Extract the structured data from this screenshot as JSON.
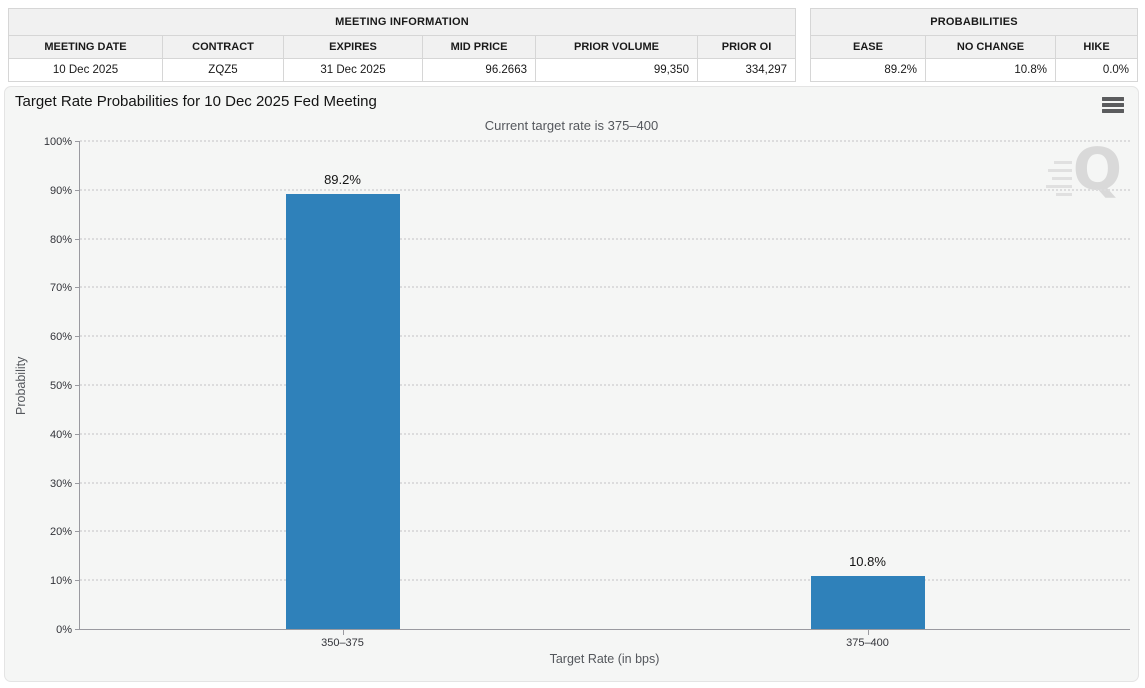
{
  "meeting_table": {
    "title": "MEETING INFORMATION",
    "columns": [
      "MEETING DATE",
      "CONTRACT",
      "EXPIRES",
      "MID PRICE",
      "PRIOR VOLUME",
      "PRIOR OI"
    ],
    "values": [
      "10 Dec 2025",
      "ZQZ5",
      "31 Dec 2025",
      "96.2663",
      "99,350",
      "334,297"
    ]
  },
  "probabilities_table": {
    "title": "PROBABILITIES",
    "columns": [
      "EASE",
      "NO CHANGE",
      "HIKE"
    ],
    "values": [
      "89.2%",
      "10.8%",
      "0.0%"
    ]
  },
  "chart": {
    "title": "Target Rate Probabilities for 10 Dec 2025 Fed Meeting",
    "subtitle": "Current target rate is 375–400",
    "watermark_letter": "Q"
  },
  "chart_data": {
    "type": "bar",
    "title": "Target Rate Probabilities for 10 Dec 2025 Fed Meeting",
    "subtitle": "Current target rate is 375–400",
    "categories": [
      "350–375",
      "375–400"
    ],
    "values": [
      89.2,
      10.8
    ],
    "value_labels": [
      "89.2%",
      "10.8%"
    ],
    "xlabel": "Target Rate (in bps)",
    "ylabel": "Probability",
    "ylim": [
      0,
      100
    ],
    "ytick_step": 10,
    "ytick_suffix": "%",
    "grid": "horizontal-dotted",
    "legend": "none",
    "bar_color": "#2f81ba"
  }
}
